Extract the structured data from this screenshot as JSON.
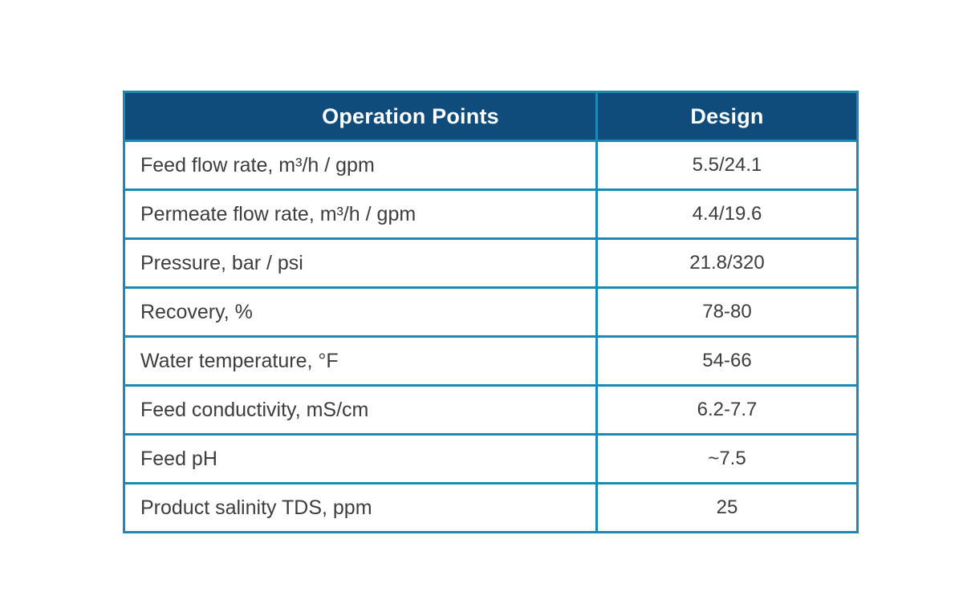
{
  "chart_data": {
    "type": "table",
    "columns": [
      "Operation Points",
      "Design"
    ],
    "rows": [
      [
        "Feed flow rate, m³/h / gpm",
        "5.5/24.1"
      ],
      [
        "Permeate flow rate, m³/h / gpm",
        "4.4/19.6"
      ],
      [
        "Pressure, bar / psi",
        "21.8/320"
      ],
      [
        "Recovery, %",
        "78-80"
      ],
      [
        "Water temperature, °F",
        "54-66"
      ],
      [
        "Feed conductivity, mS/cm",
        "6.2-7.7"
      ],
      [
        "Feed pH",
        "~7.5"
      ],
      [
        "Product salinity TDS, ppm",
        "25"
      ]
    ],
    "layout": {
      "header_position": "top",
      "grid": "on",
      "value_alignment": "center",
      "label_alignment": "left"
    }
  },
  "colors": {
    "header_background": "#0f4c7c",
    "header_text": "#ffffff",
    "border": "#1a8ab4",
    "cell_text": "#3d3d3d",
    "page_background": "#ffffff"
  }
}
